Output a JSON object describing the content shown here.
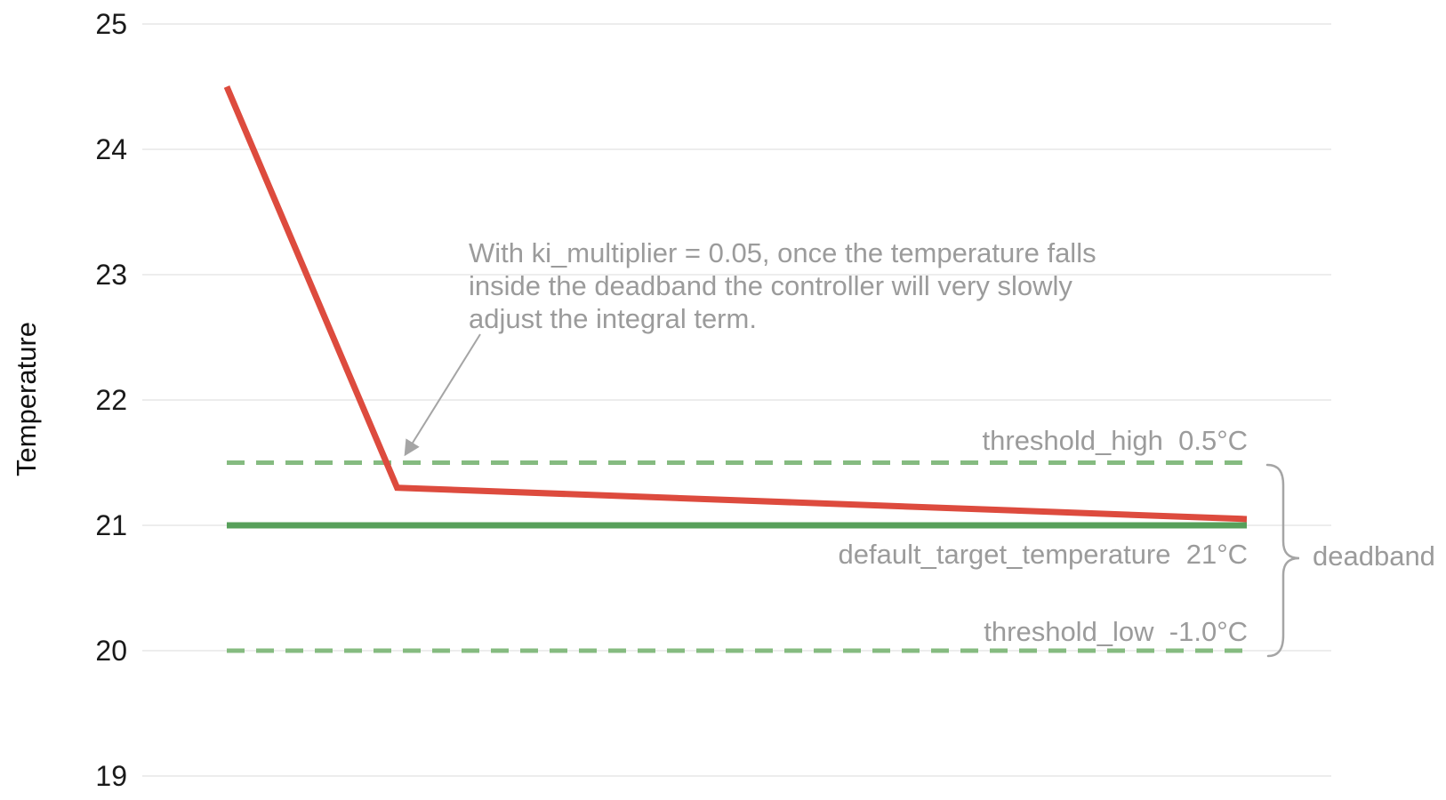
{
  "chart_data": {
    "type": "line",
    "title": "",
    "xlabel": "",
    "ylabel": "Temperature",
    "ylim": [
      19,
      25
    ],
    "yticks": [
      25,
      24,
      23,
      22,
      21,
      20,
      19
    ],
    "grid": "horizontal",
    "legend": "none",
    "series": [
      {
        "name": "temperature",
        "type": "line",
        "style": "solid",
        "color": "#dd4b3e",
        "x_frac": [
          0,
          0.167,
          1
        ],
        "values": [
          24.5,
          21.3,
          21.05
        ]
      },
      {
        "name": "default_target_temperature",
        "type": "hline",
        "style": "solid",
        "color": "#57a05a",
        "value": 21,
        "label": "default_target_temperature  21°C"
      },
      {
        "name": "threshold_high",
        "type": "hline",
        "style": "dashed",
        "color": "#85bb80",
        "value": 21.5,
        "label": "threshold_high  0.5°C"
      },
      {
        "name": "threshold_low",
        "type": "hline",
        "style": "dashed",
        "color": "#85bb80",
        "value": 20,
        "label": "threshold_low  -1.0°C"
      }
    ],
    "annotations": [
      {
        "name": "ki-note",
        "text": "With ki_multiplier = 0.05, once the temperature falls\ninside the deadband the controller will very slowly\nadjust the integral term.",
        "arrow_points_to_value": 21.5
      },
      {
        "name": "deadband-brace",
        "text": "deadband",
        "spans_values": [
          21.5,
          20
        ]
      }
    ],
    "colors": {
      "series_red": "#dd4b3e",
      "target_green": "#57a05a",
      "threshold_green": "#85bb80",
      "gridline": "#ededed",
      "annotation_gray": "#9b9b9b",
      "brace_gray": "#a5a5a5",
      "tick_text": "#1a1a1a"
    }
  }
}
